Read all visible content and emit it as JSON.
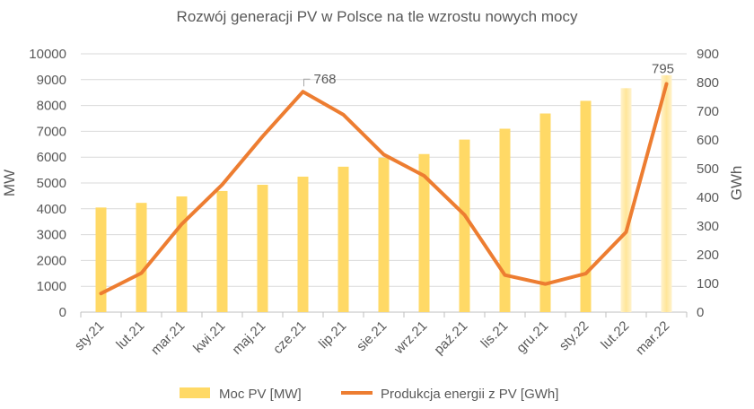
{
  "chart_data": {
    "type": "bar+line",
    "title": "Rozwój generacji PV w Polsce na tle wzrostu nowych mocy",
    "categories": [
      "sty.21",
      "lut.21",
      "mar.21",
      "kwi.21",
      "maj.21",
      "cze.21",
      "lip.21",
      "sie.21",
      "wrz.21",
      "paź.21",
      "lis.21",
      "gru.21",
      "sty.22",
      "lut.22",
      "mar.22"
    ],
    "series": [
      {
        "name": "Moc PV [MW]",
        "type": "bar",
        "axis": "left",
        "color": "#FFD966",
        "values": [
          4050,
          4230,
          4480,
          4690,
          4930,
          5245,
          5630,
          5980,
          6120,
          6680,
          7100,
          7690,
          8180,
          8670,
          9170
        ],
        "highlight_faded": [
          13,
          14
        ]
      },
      {
        "name": "Produkcja energii z PV [GWh]",
        "type": "line",
        "axis": "right",
        "color": "#ED7D31",
        "values": [
          65,
          136,
          307,
          444,
          612,
          768,
          688,
          549,
          475,
          339,
          129,
          98,
          134,
          279,
          795
        ]
      }
    ],
    "data_labels": [
      {
        "series": 1,
        "index": 5,
        "text": "768"
      },
      {
        "series": 1,
        "index": 14,
        "text": "795"
      }
    ],
    "ylabel": "MW",
    "y2label": "GWh",
    "ylim": [
      0,
      10000
    ],
    "yticks": [
      0,
      1000,
      2000,
      3000,
      4000,
      5000,
      6000,
      7000,
      8000,
      9000,
      10000
    ],
    "y2lim": [
      0,
      900
    ],
    "y2ticks": [
      0,
      100,
      200,
      300,
      400,
      500,
      600,
      700,
      800,
      900
    ],
    "grid": true,
    "legend": "bottom"
  }
}
